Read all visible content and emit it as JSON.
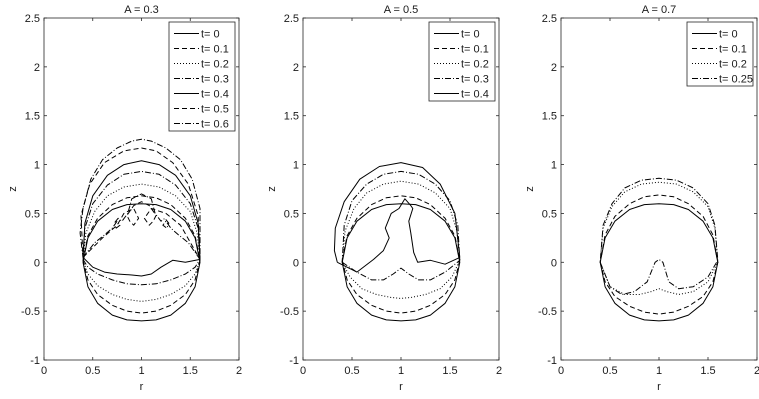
{
  "chart_data": [
    {
      "type": "line",
      "title": "A = 0.3",
      "xlabel": "r",
      "ylabel": "z",
      "xlim": [
        0,
        2
      ],
      "ylim": [
        -1,
        2.5
      ],
      "xticks": [
        "0",
        "0.5",
        "1",
        "1.5",
        "2"
      ],
      "yticks": [
        "-1",
        "-0.5",
        "0",
        "0.5",
        "1",
        "1.5",
        "2",
        "2.5"
      ],
      "legend_position": "top-right",
      "series": [
        {
          "name": "t= 0",
          "dash": "solid",
          "x": [
            0.4,
            0.45,
            0.55,
            0.7,
            0.85,
            1.0,
            1.15,
            1.3,
            1.45,
            1.55,
            1.6,
            1.55,
            1.45,
            1.3,
            1.15,
            1.0,
            0.85,
            0.7,
            0.55,
            0.45,
            0.4
          ],
          "y": [
            0.0,
            -0.25,
            -0.42,
            -0.54,
            -0.59,
            -0.6,
            -0.59,
            -0.54,
            -0.42,
            -0.25,
            0.0,
            0.25,
            0.42,
            0.54,
            0.59,
            0.6,
            0.59,
            0.54,
            0.42,
            0.25,
            0.0
          ]
        },
        {
          "name": "t= 0.1",
          "dash": "dashed",
          "x": [
            0.4,
            0.45,
            0.55,
            0.7,
            0.85,
            1.0,
            1.15,
            1.3,
            1.45,
            1.55,
            1.6,
            1.55,
            1.45,
            1.3,
            1.15,
            1.0,
            0.85,
            0.7,
            0.55,
            0.45,
            0.4
          ],
          "y": [
            0.02,
            -0.18,
            -0.33,
            -0.44,
            -0.5,
            -0.52,
            -0.5,
            -0.44,
            -0.33,
            -0.18,
            0.02,
            0.27,
            0.45,
            0.59,
            0.66,
            0.68,
            0.66,
            0.59,
            0.45,
            0.27,
            0.02
          ]
        },
        {
          "name": "t= 0.2",
          "dash": "dotted",
          "x": [
            0.4,
            0.45,
            0.55,
            0.7,
            0.85,
            1.0,
            1.15,
            1.3,
            1.45,
            1.55,
            1.6,
            1.57,
            1.5,
            1.35,
            1.18,
            1.0,
            0.82,
            0.65,
            0.52,
            0.43,
            0.4
          ],
          "y": [
            0.02,
            -0.12,
            -0.24,
            -0.33,
            -0.38,
            -0.4,
            -0.38,
            -0.33,
            -0.24,
            -0.12,
            0.02,
            0.3,
            0.52,
            0.68,
            0.77,
            0.8,
            0.77,
            0.68,
            0.52,
            0.3,
            0.02
          ]
        },
        {
          "name": "t= 0.3",
          "dash": "dashdot",
          "x": [
            0.4,
            0.45,
            0.55,
            0.7,
            0.85,
            1.0,
            1.15,
            1.3,
            1.45,
            1.55,
            1.6,
            1.58,
            1.5,
            1.35,
            1.18,
            1.0,
            0.82,
            0.65,
            0.5,
            0.42,
            0.4
          ],
          "y": [
            0.03,
            -0.05,
            -0.12,
            -0.18,
            -0.22,
            -0.23,
            -0.22,
            -0.18,
            -0.12,
            -0.05,
            0.03,
            0.35,
            0.6,
            0.79,
            0.9,
            0.93,
            0.9,
            0.79,
            0.6,
            0.35,
            0.03
          ]
        },
        {
          "name": "t= 0.4",
          "dash": "solid",
          "x": [
            0.4,
            0.5,
            0.62,
            0.75,
            0.9,
            1.0,
            1.1,
            1.2,
            1.32,
            1.45,
            1.6,
            1.58,
            1.5,
            1.35,
            1.18,
            1.0,
            0.82,
            0.65,
            0.5,
            0.42,
            0.4
          ],
          "y": [
            0.05,
            -0.05,
            -0.1,
            -0.12,
            -0.13,
            -0.14,
            -0.12,
            -0.05,
            0.02,
            0.0,
            0.03,
            0.4,
            0.68,
            0.89,
            1.0,
            1.04,
            1.0,
            0.89,
            0.68,
            0.4,
            0.05
          ]
        },
        {
          "name": "t= 0.5",
          "dash": "dashed",
          "x": [
            0.4,
            0.6,
            0.75,
            0.82,
            0.92,
            0.97,
            0.92,
            0.88,
            0.85,
            0.92,
            1.0,
            1.08,
            1.15,
            1.12,
            1.08,
            1.03,
            1.1,
            1.25,
            1.4,
            1.6,
            1.58,
            1.48,
            1.32,
            1.15,
            1.0,
            0.82,
            0.62,
            0.47,
            0.38,
            0.4
          ],
          "y": [
            0.05,
            0.25,
            0.38,
            0.5,
            0.55,
            0.45,
            0.38,
            0.42,
            0.48,
            0.58,
            0.62,
            0.58,
            0.48,
            0.42,
            0.38,
            0.45,
            0.55,
            0.5,
            0.38,
            0.03,
            0.48,
            0.8,
            1.02,
            1.14,
            1.17,
            1.14,
            1.02,
            0.8,
            0.48,
            0.05
          ]
        },
        {
          "name": "t= 0.6",
          "dash": "dashdot",
          "x": [
            0.4,
            0.52,
            0.62,
            0.7,
            0.75,
            0.78,
            0.74,
            0.72,
            0.76,
            0.8,
            0.86,
            0.9,
            1.0,
            1.1,
            1.14,
            1.2,
            1.24,
            1.28,
            1.26,
            1.22,
            1.25,
            1.3,
            1.38,
            1.48,
            1.6,
            1.6,
            1.52,
            1.4,
            1.25,
            1.1,
            1.0,
            0.9,
            0.75,
            0.6,
            0.48,
            0.4,
            0.37,
            0.4
          ],
          "y": [
            0.05,
            0.2,
            0.28,
            0.35,
            0.42,
            0.38,
            0.35,
            0.4,
            0.45,
            0.42,
            0.5,
            0.65,
            0.7,
            0.65,
            0.5,
            0.42,
            0.45,
            0.4,
            0.35,
            0.38,
            0.42,
            0.35,
            0.28,
            0.2,
            0.03,
            0.55,
            0.85,
            1.05,
            1.17,
            1.24,
            1.26,
            1.24,
            1.17,
            1.05,
            0.85,
            0.55,
            0.3,
            0.05
          ]
        }
      ]
    },
    {
      "type": "line",
      "title": "A = 0.5",
      "xlabel": "r",
      "ylabel": "z",
      "xlim": [
        0,
        2
      ],
      "ylim": [
        -1,
        2.5
      ],
      "xticks": [
        "0",
        "0.5",
        "1",
        "1.5",
        "2"
      ],
      "yticks": [
        "-1",
        "-0.5",
        "0",
        "0.5",
        "1",
        "1.5",
        "2",
        "2.5"
      ],
      "legend_position": "top-right",
      "series": [
        {
          "name": "t= 0",
          "dash": "solid",
          "x": [
            0.4,
            0.45,
            0.55,
            0.7,
            0.85,
            1.0,
            1.15,
            1.3,
            1.45,
            1.55,
            1.6,
            1.55,
            1.45,
            1.3,
            1.15,
            1.0,
            0.85,
            0.7,
            0.55,
            0.45,
            0.4
          ],
          "y": [
            0.0,
            -0.25,
            -0.42,
            -0.54,
            -0.59,
            -0.6,
            -0.59,
            -0.54,
            -0.42,
            -0.25,
            0.0,
            0.25,
            0.42,
            0.54,
            0.59,
            0.6,
            0.59,
            0.54,
            0.42,
            0.25,
            0.0
          ]
        },
        {
          "name": "t= 0.1",
          "dash": "dashed",
          "x": [
            0.4,
            0.45,
            0.55,
            0.7,
            0.85,
            1.0,
            1.15,
            1.3,
            1.45,
            1.55,
            1.6,
            1.55,
            1.45,
            1.3,
            1.15,
            1.0,
            0.85,
            0.7,
            0.55,
            0.45,
            0.4
          ],
          "y": [
            0.02,
            -0.18,
            -0.33,
            -0.44,
            -0.5,
            -0.52,
            -0.5,
            -0.44,
            -0.33,
            -0.18,
            0.02,
            0.27,
            0.45,
            0.59,
            0.66,
            0.68,
            0.66,
            0.59,
            0.45,
            0.27,
            0.02
          ]
        },
        {
          "name": "t= 0.2",
          "dash": "dotted",
          "x": [
            0.4,
            0.48,
            0.6,
            0.75,
            0.9,
            1.0,
            1.1,
            1.25,
            1.4,
            1.52,
            1.6,
            1.57,
            1.5,
            1.35,
            1.18,
            1.0,
            0.82,
            0.65,
            0.52,
            0.43,
            0.4
          ],
          "y": [
            0.0,
            -0.15,
            -0.27,
            -0.33,
            -0.36,
            -0.37,
            -0.36,
            -0.33,
            -0.27,
            -0.15,
            0.02,
            0.32,
            0.55,
            0.71,
            0.8,
            0.83,
            0.8,
            0.71,
            0.55,
            0.32,
            0.0
          ]
        },
        {
          "name": "t= 0.3",
          "dash": "dashdot",
          "x": [
            0.4,
            0.55,
            0.7,
            0.82,
            0.92,
            1.0,
            1.08,
            1.18,
            1.3,
            1.45,
            1.6,
            1.58,
            1.5,
            1.35,
            1.18,
            1.0,
            0.82,
            0.65,
            0.5,
            0.42,
            0.4
          ],
          "y": [
            0.0,
            -0.1,
            -0.18,
            -0.18,
            -0.12,
            -0.06,
            -0.12,
            -0.18,
            -0.18,
            -0.1,
            0.02,
            0.38,
            0.63,
            0.8,
            0.9,
            0.93,
            0.9,
            0.8,
            0.63,
            0.38,
            0.0
          ]
        },
        {
          "name": "t= 0.4",
          "dash": "solid",
          "x": [
            0.35,
            0.55,
            0.72,
            0.82,
            0.88,
            0.84,
            0.9,
            0.98,
            1.04,
            1.1,
            1.12,
            1.08,
            1.1,
            1.13,
            1.17,
            1.3,
            1.45,
            1.6,
            1.55,
            1.4,
            1.22,
            1.0,
            0.78,
            0.58,
            0.42,
            0.33,
            0.32,
            0.35
          ],
          "y": [
            0.0,
            -0.1,
            0.03,
            0.12,
            0.25,
            0.35,
            0.5,
            0.55,
            0.65,
            0.58,
            0.55,
            0.42,
            0.3,
            0.1,
            0.0,
            0.02,
            -0.02,
            0.05,
            0.5,
            0.8,
            0.97,
            1.02,
            0.98,
            0.85,
            0.62,
            0.35,
            0.12,
            0.0
          ]
        }
      ]
    },
    {
      "type": "line",
      "title": "A = 0.7",
      "xlabel": "r",
      "ylabel": "z",
      "xlim": [
        0,
        2
      ],
      "ylim": [
        -1,
        2.5
      ],
      "xticks": [
        "0",
        "0.5",
        "1",
        "1.5",
        "2"
      ],
      "yticks": [
        "-1",
        "-0.5",
        "0",
        "0.5",
        "1",
        "1.5",
        "2",
        "2.5"
      ],
      "legend_position": "top-right",
      "series": [
        {
          "name": "t= 0",
          "dash": "solid",
          "x": [
            0.4,
            0.45,
            0.55,
            0.7,
            0.85,
            1.0,
            1.15,
            1.3,
            1.45,
            1.55,
            1.6,
            1.55,
            1.45,
            1.3,
            1.15,
            1.0,
            0.85,
            0.7,
            0.55,
            0.45,
            0.4
          ],
          "y": [
            0.0,
            -0.25,
            -0.42,
            -0.54,
            -0.59,
            -0.6,
            -0.59,
            -0.54,
            -0.42,
            -0.25,
            0.0,
            0.25,
            0.42,
            0.54,
            0.59,
            0.6,
            0.59,
            0.54,
            0.42,
            0.25,
            0.0
          ]
        },
        {
          "name": "t= 0.1",
          "dash": "dashed",
          "x": [
            0.4,
            0.45,
            0.55,
            0.7,
            0.85,
            1.0,
            1.15,
            1.3,
            1.45,
            1.55,
            1.6,
            1.55,
            1.45,
            1.3,
            1.15,
            1.0,
            0.85,
            0.7,
            0.55,
            0.45,
            0.4
          ],
          "y": [
            0.0,
            -0.2,
            -0.35,
            -0.45,
            -0.51,
            -0.53,
            -0.51,
            -0.45,
            -0.35,
            -0.2,
            0.0,
            0.28,
            0.47,
            0.6,
            0.67,
            0.69,
            0.67,
            0.6,
            0.47,
            0.28,
            0.0
          ]
        },
        {
          "name": "t= 0.2",
          "dash": "dotted",
          "x": [
            0.4,
            0.5,
            0.65,
            0.8,
            0.92,
            1.0,
            1.08,
            1.2,
            1.35,
            1.5,
            1.6,
            1.57,
            1.5,
            1.35,
            1.18,
            1.0,
            0.82,
            0.65,
            0.52,
            0.43,
            0.4
          ],
          "y": [
            0.0,
            -0.25,
            -0.33,
            -0.33,
            -0.3,
            -0.27,
            -0.3,
            -0.33,
            -0.3,
            -0.2,
            0.0,
            0.35,
            0.57,
            0.72,
            0.8,
            0.82,
            0.8,
            0.72,
            0.57,
            0.35,
            0.0
          ]
        },
        {
          "name": "t= 0.25",
          "dash": "dashdot",
          "x": [
            0.4,
            0.5,
            0.62,
            0.75,
            0.88,
            0.94,
            0.96,
            1.0,
            1.04,
            1.07,
            1.1,
            1.2,
            1.35,
            1.5,
            1.6,
            1.57,
            1.5,
            1.35,
            1.18,
            1.0,
            0.82,
            0.65,
            0.52,
            0.43,
            0.4
          ],
          "y": [
            0.0,
            -0.25,
            -0.33,
            -0.3,
            -0.2,
            -0.05,
            0.0,
            0.03,
            0.0,
            -0.1,
            -0.2,
            -0.27,
            -0.25,
            -0.15,
            0.02,
            0.38,
            0.6,
            0.76,
            0.84,
            0.86,
            0.84,
            0.76,
            0.6,
            0.38,
            0.0
          ]
        }
      ]
    }
  ]
}
